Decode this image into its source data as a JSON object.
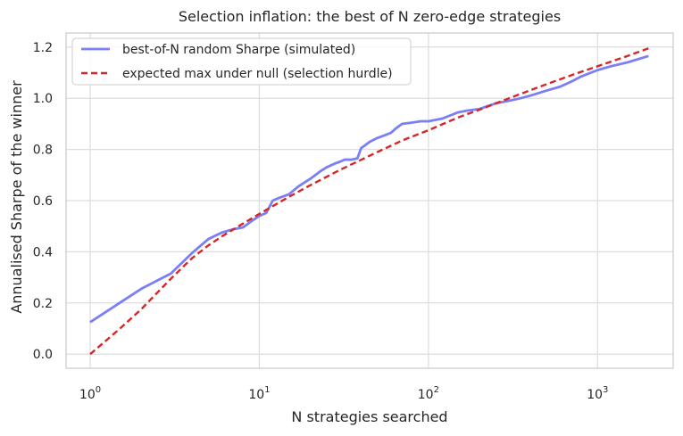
{
  "chart_data": {
    "type": "line",
    "title": "Selection inflation: the best of N zero-edge strategies",
    "xlabel": "N strategies searched",
    "ylabel": "Annualised Sharpe of the winner",
    "x_scale": "log",
    "xlim": [
      0.72,
      2800
    ],
    "ylim": [
      -0.055,
      1.255
    ],
    "x_ticks": [
      {
        "value": 1,
        "base": "10",
        "exp": "0"
      },
      {
        "value": 10,
        "base": "10",
        "exp": "1"
      },
      {
        "value": 100,
        "base": "10",
        "exp": "2"
      },
      {
        "value": 1000,
        "base": "10",
        "exp": "3"
      }
    ],
    "y_ticks": [
      {
        "value": 0.0,
        "label": "0.0"
      },
      {
        "value": 0.2,
        "label": "0.2"
      },
      {
        "value": 0.4,
        "label": "0.4"
      },
      {
        "value": 0.6,
        "label": "0.6"
      },
      {
        "value": 0.8,
        "label": "0.8"
      },
      {
        "value": 1.0,
        "label": "1.0"
      },
      {
        "value": 1.2,
        "label": "1.2"
      }
    ],
    "grid": true,
    "legend_position": "top-left",
    "series": [
      {
        "name": "best-of-N random Sharpe (simulated)",
        "color": "#7b7ff5",
        "style": "solid",
        "x": [
          1,
          2,
          3,
          4,
          5,
          6,
          7,
          8,
          9,
          10,
          11,
          12,
          13,
          15,
          17,
          20,
          23,
          25,
          28,
          30,
          32,
          35,
          38,
          40,
          42,
          45,
          50,
          55,
          60,
          65,
          70,
          80,
          90,
          100,
          120,
          150,
          170,
          200,
          250,
          300,
          350,
          400,
          500,
          600,
          700,
          800,
          1000,
          1200,
          1500,
          2000
        ],
        "y": [
          0.125,
          0.255,
          0.315,
          0.395,
          0.45,
          0.475,
          0.488,
          0.495,
          0.52,
          0.54,
          0.552,
          0.6,
          0.61,
          0.625,
          0.655,
          0.685,
          0.715,
          0.73,
          0.745,
          0.752,
          0.76,
          0.76,
          0.765,
          0.805,
          0.815,
          0.83,
          0.845,
          0.855,
          0.865,
          0.885,
          0.9,
          0.905,
          0.91,
          0.91,
          0.92,
          0.945,
          0.952,
          0.958,
          0.98,
          0.99,
          1.0,
          1.01,
          1.03,
          1.045,
          1.065,
          1.085,
          1.11,
          1.125,
          1.14,
          1.165
        ]
      },
      {
        "name": "expected max under null (selection hurdle)",
        "color": "#d62728",
        "style": "dashed",
        "x": [
          1,
          1.5,
          2,
          3,
          4,
          5,
          6,
          8,
          10,
          15,
          20,
          30,
          50,
          70,
          100,
          150,
          200,
          300,
          500,
          700,
          1000,
          1500,
          2000
        ],
        "y": [
          0.0,
          0.1,
          0.175,
          0.295,
          0.375,
          0.425,
          0.46,
          0.51,
          0.548,
          0.615,
          0.66,
          0.72,
          0.79,
          0.835,
          0.875,
          0.925,
          0.955,
          1.0,
          1.055,
          1.09,
          1.125,
          1.165,
          1.195
        ]
      }
    ]
  }
}
